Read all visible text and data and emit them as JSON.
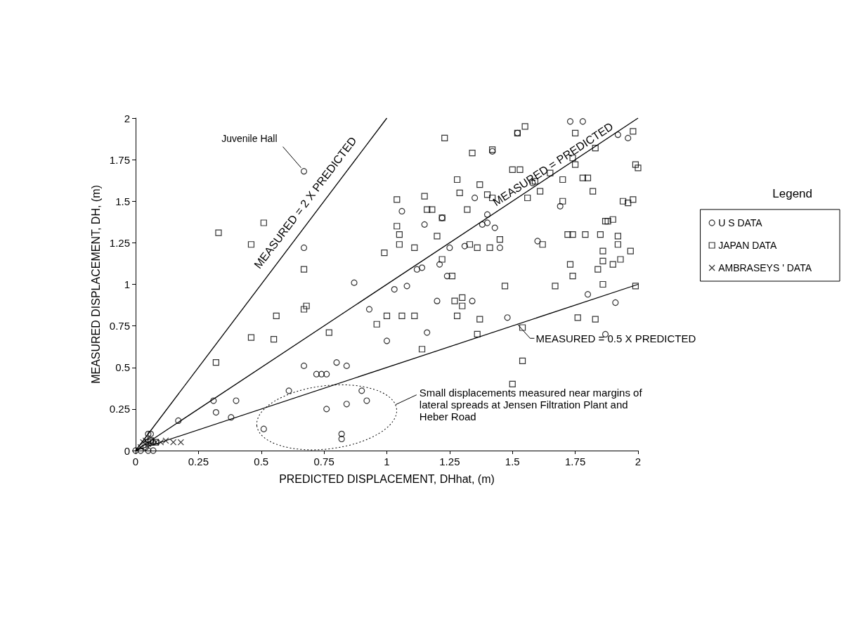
{
  "chart_data": {
    "type": "scatter",
    "xlabel": "PREDICTED DISPLACEMENT, DHhat, (m)",
    "ylabel": "MEASURED DISPLACEMENT, DH, (m)",
    "legend_title": "Legend",
    "legend": "right",
    "grid": false,
    "xlim": [
      0,
      2
    ],
    "xticks": [
      0,
      0.25,
      0.5,
      0.75,
      1,
      1.25,
      1.5,
      1.75,
      2
    ],
    "ylim": [
      0,
      2
    ],
    "yticks": [
      0,
      0.25,
      0.5,
      0.75,
      1,
      1.25,
      1.5,
      1.75,
      2
    ],
    "annotations": [
      {
        "text": "Juvenile Hall",
        "x": 0.67,
        "y": 1.68
      },
      "Small displacements measured near margins of lateral spreads at Jensen Filtration Plant and Heber Road"
    ],
    "series": [
      {
        "name": "U S DATA",
        "marker": "circle",
        "color": "#000000",
        "x": [
          0.67,
          0.67,
          0.87,
          0.67,
          0.72,
          0.74,
          0.76,
          0.8,
          0.84,
          0.61,
          0.31,
          0.4,
          0.32,
          0.38,
          0.17,
          0.51,
          0.76,
          0.84,
          0.9,
          0.92,
          0.82,
          0.82,
          0.93,
          1.0,
          1.03,
          1.06,
          1.08,
          1.12,
          1.16,
          1.14,
          1.2,
          1.21,
          1.22,
          1.24,
          1.31,
          1.34,
          1.35,
          1.38,
          1.4,
          1.42,
          1.43,
          1.45,
          1.48,
          1.52,
          1.58,
          1.6,
          1.69,
          1.73,
          1.78,
          1.8,
          1.87,
          1.91,
          1.92,
          1.96,
          1.15,
          1.25,
          1.4,
          0,
          0.02,
          0.04,
          0.05,
          0.06,
          0.06,
          0.07,
          0.05,
          0.07
        ],
        "values": [
          1.68,
          1.22,
          1.01,
          0.51,
          0.46,
          0.46,
          0.46,
          0.53,
          0.51,
          0.36,
          0.3,
          0.3,
          0.23,
          0.2,
          0.18,
          0.13,
          0.25,
          0.28,
          0.36,
          0.3,
          0.1,
          0.07,
          0.85,
          0.66,
          0.97,
          1.44,
          0.99,
          1.09,
          0.71,
          1.1,
          0.9,
          1.12,
          1.4,
          1.05,
          1.23,
          0.9,
          1.52,
          1.36,
          1.42,
          1.8,
          1.34,
          1.22,
          0.8,
          1.91,
          1.61,
          1.26,
          1.47,
          1.98,
          1.98,
          0.94,
          0.7,
          0.89,
          1.9,
          1.88,
          1.36,
          1.22,
          1.37,
          0,
          0,
          0.02,
          0.1,
          0.1,
          0.06,
          0.05,
          0,
          0
        ]
      },
      {
        "name": "JAPAN DATA",
        "marker": "square",
        "color": "#000000",
        "x": [
          0.33,
          0.51,
          0.46,
          0.67,
          0.67,
          0.68,
          0.56,
          0.55,
          0.46,
          0.77,
          0.32,
          0.99,
          1.0,
          0.96,
          1.04,
          1.04,
          1.05,
          1.05,
          1.06,
          1.11,
          1.11,
          1.14,
          1.15,
          1.16,
          1.18,
          1.2,
          1.22,
          1.23,
          1.22,
          1.26,
          1.28,
          1.29,
          1.27,
          1.28,
          1.3,
          1.32,
          1.3,
          1.34,
          1.33,
          1.36,
          1.37,
          1.37,
          1.36,
          1.4,
          1.41,
          1.42,
          1.42,
          1.45,
          1.47,
          1.5,
          1.52,
          1.53,
          1.55,
          1.56,
          1.54,
          1.54,
          1.5,
          1.59,
          1.61,
          1.62,
          1.65,
          1.67,
          1.7,
          1.7,
          1.72,
          1.73,
          1.74,
          1.74,
          1.74,
          1.75,
          1.76,
          1.75,
          1.78,
          1.79,
          1.8,
          1.82,
          1.83,
          1.83,
          1.85,
          1.86,
          1.86,
          1.87,
          1.88,
          1.9,
          1.9,
          1.92,
          1.93,
          1.92,
          1.94,
          1.97,
          1.96,
          1.98,
          1.99,
          2.0,
          1.98,
          1.99,
          1.84,
          1.86,
          0.05,
          0.06,
          0.08
        ],
        "values": [
          1.31,
          1.37,
          1.24,
          1.09,
          0.85,
          0.87,
          0.81,
          0.67,
          0.68,
          0.71,
          0.53,
          1.19,
          0.81,
          0.76,
          1.51,
          1.35,
          1.3,
          1.24,
          0.81,
          1.22,
          0.81,
          0.61,
          1.53,
          1.45,
          1.45,
          1.29,
          1.15,
          1.88,
          1.4,
          1.05,
          1.63,
          1.55,
          0.9,
          0.81,
          0.87,
          1.45,
          0.92,
          1.79,
          1.24,
          1.22,
          1.6,
          0.79,
          0.7,
          1.54,
          1.22,
          1.52,
          1.81,
          1.27,
          0.99,
          1.69,
          1.91,
          1.69,
          1.95,
          1.52,
          0.74,
          0.54,
          0.4,
          1.62,
          1.56,
          1.24,
          1.67,
          0.99,
          1.5,
          1.63,
          1.3,
          1.12,
          1.3,
          1.05,
          1.76,
          1.72,
          0.8,
          1.91,
          1.64,
          1.3,
          1.64,
          1.56,
          1.82,
          0.79,
          1.3,
          1.2,
          1.14,
          1.38,
          1.38,
          1.39,
          1.12,
          1.29,
          1.15,
          1.24,
          1.5,
          1.2,
          1.49,
          1.51,
          1.72,
          1.7,
          1.92,
          0.99,
          1.09,
          1.0,
          0.05,
          0.06,
          0.05
        ]
      },
      {
        "name": "AMBRASEYS ' DATA",
        "marker": "cross",
        "color": "#000000",
        "x": [
          0.02,
          0.03,
          0.04,
          0.05,
          0.08,
          0.1,
          0.12,
          0.15,
          0.18
        ],
        "values": [
          0.02,
          0.05,
          0.06,
          0.04,
          0.05,
          0.05,
          0.06,
          0.05,
          0.05
        ]
      },
      {
        "name": "MEASURED = 2 X PREDICTED",
        "type": "line",
        "marker": "none",
        "color": "#000000",
        "x": [
          0,
          1
        ],
        "values": [
          0,
          2
        ]
      },
      {
        "name": "MEASURED = PREDICTED",
        "type": "line",
        "marker": "none",
        "color": "#000000",
        "x": [
          0,
          2
        ],
        "values": [
          0,
          2
        ]
      },
      {
        "name": "MEASURED = 0.5 X PREDICTED",
        "type": "line",
        "marker": "none",
        "color": "#000000",
        "x": [
          0,
          2
        ],
        "values": [
          0,
          1
        ]
      }
    ]
  }
}
